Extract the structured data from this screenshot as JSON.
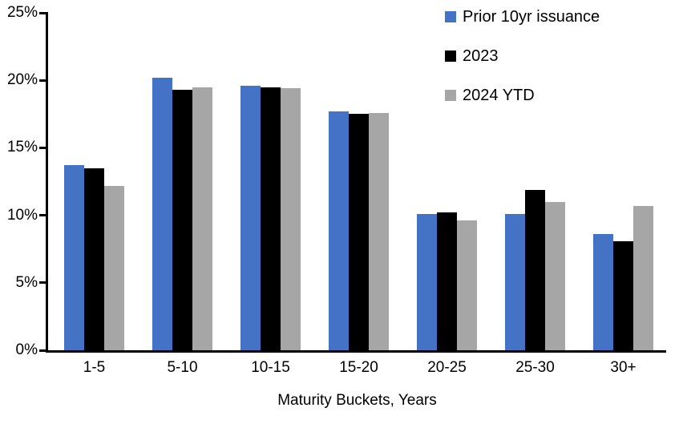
{
  "chart_data": {
    "type": "bar",
    "title": "",
    "categories": [
      "1-5",
      "5-10",
      "10-15",
      "15-20",
      "20-25",
      "25-30",
      "30+"
    ],
    "series": [
      {
        "name": "Prior 10yr issuance",
        "color": "#4472C4",
        "values": [
          13.7,
          20.2,
          19.6,
          17.7,
          10.1,
          10.1,
          8.6
        ]
      },
      {
        "name": "2023",
        "color": "#000000",
        "values": [
          13.5,
          19.3,
          19.5,
          17.5,
          10.2,
          11.9,
          8.1
        ]
      },
      {
        "name": "2024 YTD",
        "color": "#A6A6A6",
        "values": [
          12.2,
          19.5,
          19.4,
          17.6,
          9.6,
          11.0,
          10.7
        ]
      }
    ],
    "xlabel": "Maturity Buckets, Years",
    "ylabel": "",
    "ylim": [
      0,
      25
    ],
    "ytick_step": 5,
    "ytick_labels": [
      "0%",
      "5%",
      "10%",
      "15%",
      "20%",
      "25%"
    ],
    "grid": false,
    "legend_position": "top-right",
    "axis_color": "#000000",
    "background_color": "#FFFFFF"
  }
}
